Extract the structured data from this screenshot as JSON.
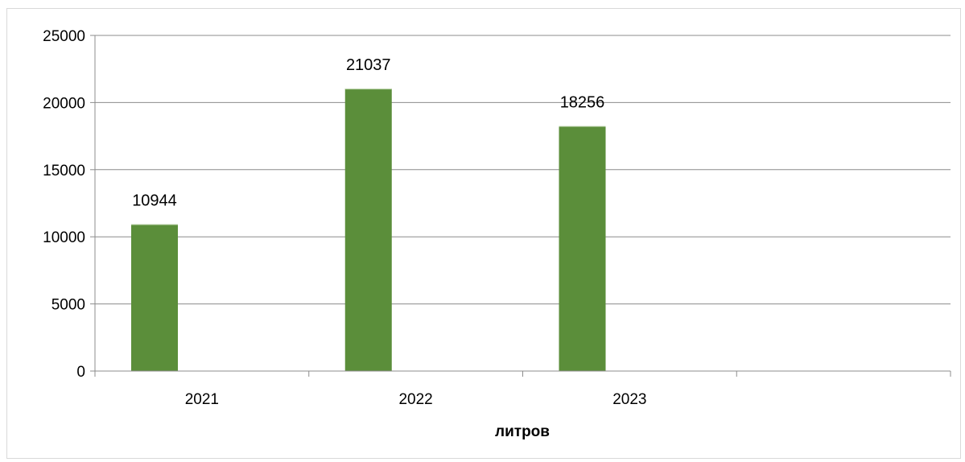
{
  "chart_data": {
    "type": "bar",
    "categories": [
      "2021",
      "2022",
      "2023",
      ""
    ],
    "values": [
      10944,
      21037,
      18256,
      null
    ],
    "data_labels": [
      "10944",
      "21037",
      "18256",
      ""
    ],
    "title": "",
    "xlabel": "литров",
    "ylabel": "",
    "ylim": [
      0,
      25000
    ],
    "yticks": [
      "0",
      "5000",
      "10000",
      "15000",
      "20000",
      "25000"
    ],
    "grid": true,
    "legend": "none",
    "bar_color": "#5b8e3a",
    "gridline_color": "#8c8c8c"
  }
}
